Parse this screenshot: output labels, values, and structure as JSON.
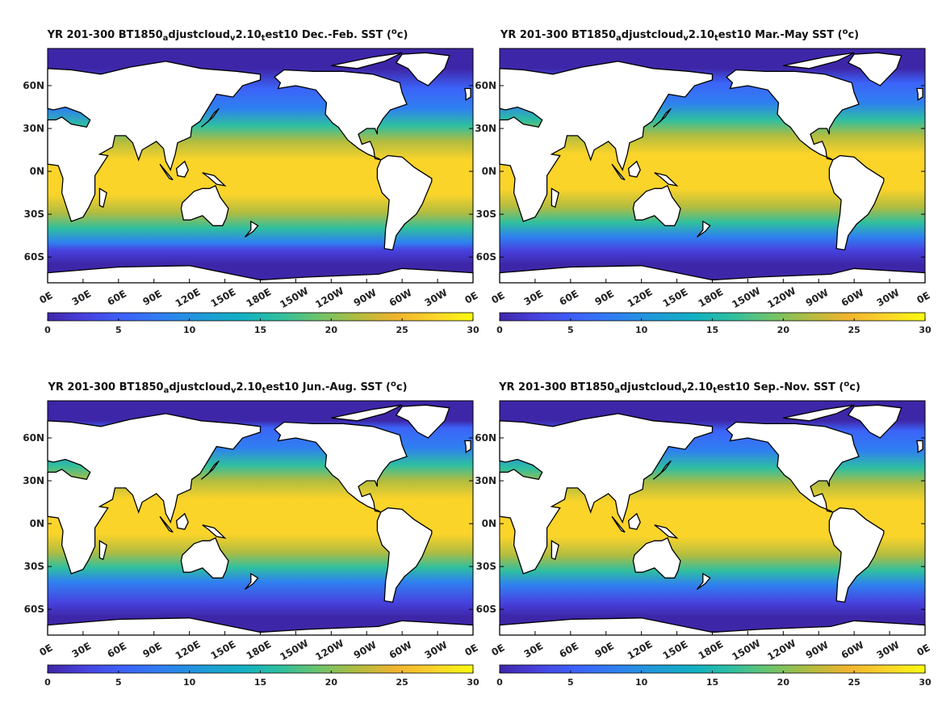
{
  "chart_data": [
    {
      "type": "heatmap",
      "title_parts": [
        "YR 201-300 BT1850",
        "a",
        "djustcloud",
        "v",
        "2.10",
        "t",
        "est10 Dec.-Feb. SST (",
        "o",
        "c)"
      ],
      "season": "Dec.-Feb.",
      "x_ticks": [
        "0E",
        "30E",
        "60E",
        "90E",
        "120E",
        "150E",
        "180E",
        "150W",
        "120W",
        "90W",
        "60W",
        "30W",
        "0E"
      ],
      "y_ticks": [
        "60N",
        "30N",
        "0N",
        "30S",
        "60S"
      ],
      "colorbar_ticks": [
        "0",
        "5",
        "10",
        "15",
        "20",
        "25",
        "30"
      ],
      "clim": [
        0,
        30
      ],
      "colormap": "parula",
      "xlim": [
        0,
        360
      ],
      "ylim": [
        -78,
        86
      ]
    },
    {
      "type": "heatmap",
      "title_parts": [
        "YR 201-300 BT1850",
        "a",
        "djustcloud",
        "v",
        "2.10",
        "t",
        "est10 Mar.-May SST (",
        "o",
        "c)"
      ],
      "season": "Mar.-May",
      "x_ticks": [
        "0E",
        "30E",
        "60E",
        "90E",
        "120E",
        "150E",
        "180E",
        "150W",
        "120W",
        "90W",
        "60W",
        "30W",
        "0E"
      ],
      "y_ticks": [
        "60N",
        "30N",
        "0N",
        "30S",
        "60S"
      ],
      "colorbar_ticks": [
        "0",
        "5",
        "10",
        "15",
        "20",
        "25",
        "30"
      ],
      "clim": [
        0,
        30
      ],
      "colormap": "parula",
      "xlim": [
        0,
        360
      ],
      "ylim": [
        -78,
        86
      ]
    },
    {
      "type": "heatmap",
      "title_parts": [
        "YR 201-300 BT1850",
        "a",
        "djustcloud",
        "v",
        "2.10",
        "t",
        "est10 Jun.-Aug. SST (",
        "o",
        "c)"
      ],
      "season": "Jun.-Aug.",
      "x_ticks": [
        "0E",
        "30E",
        "60E",
        "90E",
        "120E",
        "150E",
        "180E",
        "150W",
        "120W",
        "90W",
        "60W",
        "30W",
        "0E"
      ],
      "y_ticks": [
        "60N",
        "30N",
        "0N",
        "30S",
        "60S"
      ],
      "colorbar_ticks": [
        "0",
        "5",
        "10",
        "15",
        "20",
        "25",
        "30"
      ],
      "clim": [
        0,
        30
      ],
      "colormap": "parula",
      "xlim": [
        0,
        360
      ],
      "ylim": [
        -78,
        86
      ]
    },
    {
      "type": "heatmap",
      "title_parts": [
        "YR 201-300 BT1850",
        "a",
        "djustcloud",
        "v",
        "2.10",
        "t",
        "est10 Sep.-Nov. SST (",
        "o",
        "c)"
      ],
      "season": "Sep.-Nov.",
      "x_ticks": [
        "0E",
        "30E",
        "60E",
        "90E",
        "120E",
        "150E",
        "180E",
        "150W",
        "120W",
        "90W",
        "60W",
        "30W",
        "0E"
      ],
      "y_ticks": [
        "60N",
        "30N",
        "0N",
        "30S",
        "60S"
      ],
      "colorbar_ticks": [
        "0",
        "5",
        "10",
        "15",
        "20",
        "25",
        "30"
      ],
      "clim": [
        0,
        30
      ],
      "colormap": "parula",
      "xlim": [
        0,
        360
      ],
      "ylim": [
        -78,
        86
      ]
    }
  ],
  "colors": {
    "parula": [
      "#3e26a8",
      "#4743e0",
      "#3c63f9",
      "#2f80f0",
      "#1f9ad8",
      "#12b0c4",
      "#2ebfa0",
      "#6cc46c",
      "#b1bc40",
      "#f0b42f",
      "#fbd42a",
      "#f9fb0e"
    ],
    "land": "#ffffff",
    "coast": "#000000"
  }
}
